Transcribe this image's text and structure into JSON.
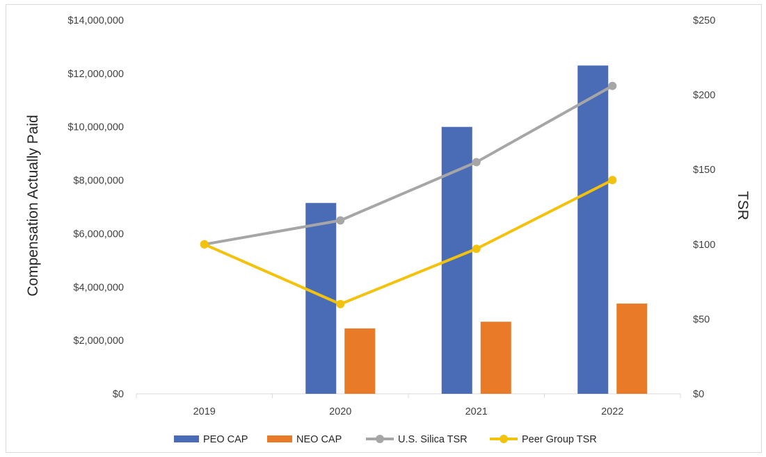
{
  "chart_data": {
    "type": "bar",
    "categories": [
      "2019",
      "2020",
      "2021",
      "2022"
    ],
    "series": [
      {
        "name": "PEO CAP",
        "kind": "bar",
        "axis": "left",
        "color": "#4a6cb6",
        "values": [
          null,
          7150000,
          10000000,
          12300000
        ]
      },
      {
        "name": "NEO CAP",
        "kind": "bar",
        "axis": "left",
        "color": "#e87a28",
        "values": [
          null,
          2450000,
          2700000,
          3380000
        ]
      },
      {
        "name": "U.S. Silica TSR",
        "kind": "line",
        "axis": "right",
        "color": "#a6a6a6",
        "values": [
          100,
          116,
          155,
          206
        ]
      },
      {
        "name": "Peer Group TSR",
        "kind": "line",
        "axis": "right",
        "color": "#f2c20d",
        "values": [
          100,
          60,
          97,
          143
        ]
      }
    ],
    "ylabel": "Compensation Actually Paid",
    "y2label": "TSR",
    "ylim": [
      0,
      14000000
    ],
    "y2lim": [
      0,
      250
    ],
    "yticks": [
      "$0",
      "$2,000,000",
      "$4,000,000",
      "$6,000,000",
      "$8,000,000",
      "$10,000,000",
      "$12,000,000",
      "$14,000,000"
    ],
    "y2ticks": [
      "$0",
      "$50",
      "$100",
      "$150",
      "$200",
      "$250"
    ],
    "grid": false,
    "legend": "bottom"
  }
}
